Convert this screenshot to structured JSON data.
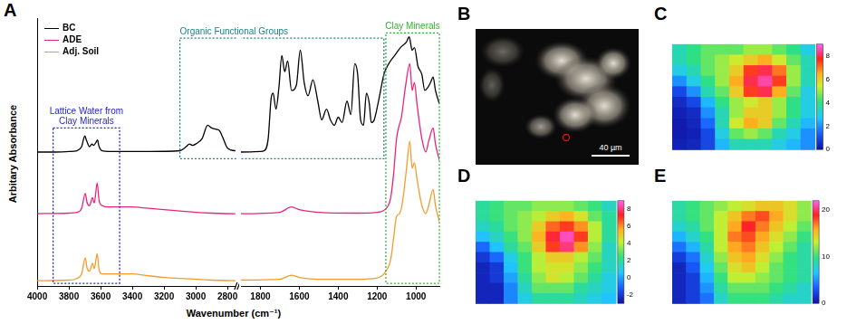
{
  "chart_data": [
    {
      "panel": "A",
      "type": "line",
      "x_label": "Wavenumber (cm⁻¹)",
      "y_label": "Arbitary Absorbance",
      "xlim": [
        [
          4000,
          2750
        ],
        [
          1900,
          880
        ]
      ],
      "xticks": [
        [
          4000,
          3800,
          3600,
          3400,
          3200,
          3000,
          2800
        ],
        [
          1800,
          1600,
          1400,
          1200,
          1000
        ]
      ],
      "ylim": [
        0,
        10
      ],
      "tick_labels": "x",
      "grid": false,
      "legend": "upper left",
      "series": [
        {
          "name": "BC",
          "color": "#000000",
          "x": [
            4000,
            3900,
            3800,
            3750,
            3720,
            3700,
            3690,
            3670,
            3655,
            3645,
            3630,
            3620,
            3610,
            3590,
            3500,
            3300,
            3100,
            3060,
            3040,
            3020,
            3000,
            2960,
            2925,
            2900,
            2870,
            2850,
            2830,
            2800,
            2750,
            1900,
            1800,
            1780,
            1760,
            1745,
            1735,
            1720,
            1705,
            1690,
            1675,
            1660,
            1640,
            1615,
            1595,
            1575,
            1555,
            1530,
            1505,
            1485,
            1460,
            1440,
            1420,
            1400,
            1380,
            1355,
            1335,
            1315,
            1300,
            1285,
            1270,
            1255,
            1240,
            1230,
            1215,
            1190,
            1165,
            1140,
            1110,
            1080,
            1050,
            1035,
            1020,
            1008,
            990,
            970,
            955,
            940,
            925,
            912,
            900,
            880
          ],
          "values": [
            5.0,
            5.0,
            5.02,
            5.05,
            5.2,
            5.6,
            5.45,
            5.2,
            5.3,
            5.25,
            5.35,
            5.45,
            5.2,
            5.05,
            5.02,
            5.02,
            5.05,
            5.2,
            5.3,
            5.25,
            5.3,
            5.5,
            6.0,
            5.9,
            5.85,
            5.8,
            5.55,
            5.15,
            5.05,
            5.0,
            5.02,
            5.05,
            5.5,
            7.0,
            7.2,
            6.6,
            7.4,
            8.6,
            8.0,
            8.4,
            7.3,
            7.5,
            8.8,
            7.6,
            7.1,
            7.7,
            6.9,
            6.2,
            6.6,
            6.2,
            6.0,
            6.3,
            6.1,
            6.9,
            6.4,
            8.3,
            7.9,
            6.2,
            6.0,
            7.2,
            6.8,
            6.1,
            6.2,
            7.0,
            7.9,
            8.3,
            8.6,
            8.9,
            9.1,
            9.3,
            8.8,
            8.9,
            8.2,
            7.9,
            7.3,
            7.4,
            7.6,
            7.8,
            7.3,
            6.8
          ]
        },
        {
          "name": "ADE",
          "color": "#e8247c",
          "x": [
            4000,
            3800,
            3750,
            3720,
            3697,
            3685,
            3670,
            3652,
            3640,
            3622,
            3610,
            3590,
            3550,
            3450,
            3400,
            3300,
            3200,
            3100,
            3000,
            2900,
            2750,
            1900,
            1700,
            1640,
            1600,
            1500,
            1300,
            1200,
            1160,
            1130,
            1115,
            1100,
            1090,
            1075,
            1055,
            1032,
            1020,
            1008,
            995,
            970,
            950,
            935,
            912,
            900,
            880
          ],
          "values": [
            2.7,
            2.72,
            2.75,
            2.9,
            3.45,
            3.1,
            3.0,
            3.3,
            3.1,
            3.85,
            3.2,
            3.0,
            2.95,
            2.95,
            2.95,
            2.9,
            2.85,
            2.8,
            2.75,
            2.72,
            2.7,
            2.7,
            2.75,
            2.95,
            2.85,
            2.75,
            2.72,
            2.75,
            2.85,
            3.3,
            4.2,
            5.5,
            5.9,
            6.3,
            7.4,
            8.3,
            7.3,
            7.6,
            6.8,
            5.5,
            5.0,
            5.4,
            5.9,
            5.3,
            4.7
          ]
        },
        {
          "name": "Adj. Soil",
          "color": "#f39c2c",
          "x": [
            4000,
            3800,
            3750,
            3720,
            3697,
            3685,
            3670,
            3652,
            3640,
            3622,
            3610,
            3590,
            3500,
            3400,
            3300,
            3200,
            3100,
            2900,
            2750,
            1900,
            1700,
            1640,
            1600,
            1500,
            1300,
            1200,
            1160,
            1130,
            1115,
            1100,
            1085,
            1070,
            1050,
            1032,
            1020,
            1008,
            995,
            970,
            950,
            935,
            912,
            900,
            880
          ],
          "values": [
            0.2,
            0.22,
            0.28,
            0.45,
            1.05,
            0.65,
            0.55,
            0.85,
            0.65,
            1.2,
            0.6,
            0.45,
            0.45,
            0.45,
            0.38,
            0.32,
            0.28,
            0.22,
            0.2,
            0.22,
            0.25,
            0.4,
            0.32,
            0.25,
            0.25,
            0.3,
            0.5,
            1.0,
            1.8,
            2.6,
            2.7,
            3.1,
            4.3,
            5.4,
            4.4,
            4.6,
            4.0,
            3.0,
            2.7,
            3.0,
            3.6,
            3.0,
            2.4
          ]
        }
      ],
      "annotations": [
        {
          "text": "Lattice Water from Clay Minerals",
          "color": "#2323d2",
          "x_range": [
            3900,
            3480
          ],
          "y_range": [
            0.1,
            5.9
          ]
        },
        {
          "text": "Organic Functional Groups",
          "color": "#1a7f86",
          "x_range": [
            3100,
            1165
          ],
          "y_range": [
            4.75,
            9.25
          ]
        },
        {
          "text": "Clay Minerals",
          "color": "#34b034",
          "x_range": [
            1155,
            880
          ],
          "y_range": [
            0.1,
            9.45
          ]
        }
      ]
    },
    {
      "panel": "B",
      "type": "image",
      "scale_bar": "40 µm"
    },
    {
      "panel": "C",
      "type": "heatmap",
      "zlim": [
        0,
        9
      ],
      "zticks": [
        0,
        2,
        4,
        6,
        8
      ],
      "cells": [
        [
          3.5,
          4,
          4.5,
          4.5,
          4.5,
          5,
          5,
          4.5,
          4,
          3
        ],
        [
          3.5,
          4,
          4.5,
          5,
          5.5,
          6,
          6.5,
          5.5,
          4.5,
          3.5
        ],
        [
          3,
          3.5,
          4.5,
          5,
          6,
          7.5,
          8,
          7,
          5,
          3.5
        ],
        [
          2,
          3,
          4,
          5,
          6.5,
          8,
          8.5,
          7.5,
          5,
          3.5
        ],
        [
          1,
          2,
          3.5,
          4.5,
          6,
          7.5,
          8,
          6.5,
          4.5,
          3
        ],
        [
          0.5,
          1,
          2.5,
          4,
          5,
          5.5,
          6,
          5,
          4,
          3
        ],
        [
          0.3,
          0.5,
          2,
          3.5,
          5,
          6,
          6,
          5,
          4,
          3
        ],
        [
          0.2,
          0.4,
          1.5,
          3.5,
          5.5,
          6.5,
          6,
          4.5,
          3.5,
          2.5
        ],
        [
          0.2,
          0.3,
          1,
          3,
          4.5,
          5,
          4.5,
          3.5,
          3,
          2
        ],
        [
          0.3,
          0.4,
          1,
          2.5,
          3.5,
          3.5,
          3.5,
          3,
          2.5,
          2
        ]
      ]
    },
    {
      "panel": "D",
      "type": "heatmap",
      "zlim": [
        -3,
        9
      ],
      "zticks": [
        -2,
        0,
        2,
        4,
        6,
        8
      ],
      "cells": [
        [
          2,
          2.5,
          3,
          3,
          3.5,
          3.5,
          3.5,
          3,
          2.5,
          1.5
        ],
        [
          2,
          2.5,
          3,
          3.5,
          4,
          5,
          5.5,
          4.5,
          3,
          2
        ],
        [
          1.5,
          2,
          3,
          3.5,
          5,
          6.5,
          7,
          6,
          4,
          2
        ],
        [
          0.5,
          1.5,
          2.5,
          3.5,
          5.5,
          7.5,
          8.5,
          7,
          4,
          2
        ],
        [
          -1,
          0.5,
          2,
          3,
          5,
          7,
          8,
          6,
          3.5,
          1.5
        ],
        [
          -2,
          -1,
          1,
          2.5,
          4,
          5,
          5,
          4,
          3,
          1.5
        ],
        [
          -2.5,
          -2,
          0.5,
          2.5,
          4,
          4.5,
          4.5,
          3.5,
          2.5,
          1.5
        ],
        [
          -2.5,
          -2,
          0,
          2,
          3.5,
          4.5,
          4,
          3,
          2,
          1
        ],
        [
          -2.5,
          -2.5,
          -0.5,
          1.5,
          3,
          3,
          3,
          2,
          1.5,
          1
        ],
        [
          -2.5,
          -2.5,
          -0.5,
          1,
          2,
          2,
          2,
          1.5,
          1,
          0.5
        ]
      ]
    },
    {
      "panel": "E",
      "type": "heatmap",
      "zlim": [
        0,
        22
      ],
      "zticks": [
        0,
        10,
        20
      ],
      "cells": [
        [
          9,
          10,
          11,
          12,
          13,
          14,
          15,
          15,
          14,
          12
        ],
        [
          9,
          10,
          11,
          13,
          15,
          17,
          18,
          16,
          14,
          12
        ],
        [
          8,
          9,
          11,
          13,
          16,
          19,
          17,
          15,
          13,
          11
        ],
        [
          6,
          8,
          10,
          13,
          17,
          18,
          16,
          14,
          12,
          10
        ],
        [
          4,
          6,
          9,
          13,
          16,
          17,
          15,
          13,
          11,
          9
        ],
        [
          2,
          4,
          8,
          12,
          15,
          16,
          14,
          12,
          10,
          9
        ],
        [
          1,
          3,
          7,
          11,
          14,
          15,
          13,
          11,
          10,
          9
        ],
        [
          1,
          2,
          6,
          10,
          13,
          13,
          12,
          11,
          10,
          9
        ],
        [
          1,
          2,
          5,
          9,
          11,
          11,
          11,
          10,
          9,
          8
        ],
        [
          1,
          2,
          4,
          8,
          10,
          10,
          10,
          9,
          8,
          8
        ]
      ]
    }
  ]
}
